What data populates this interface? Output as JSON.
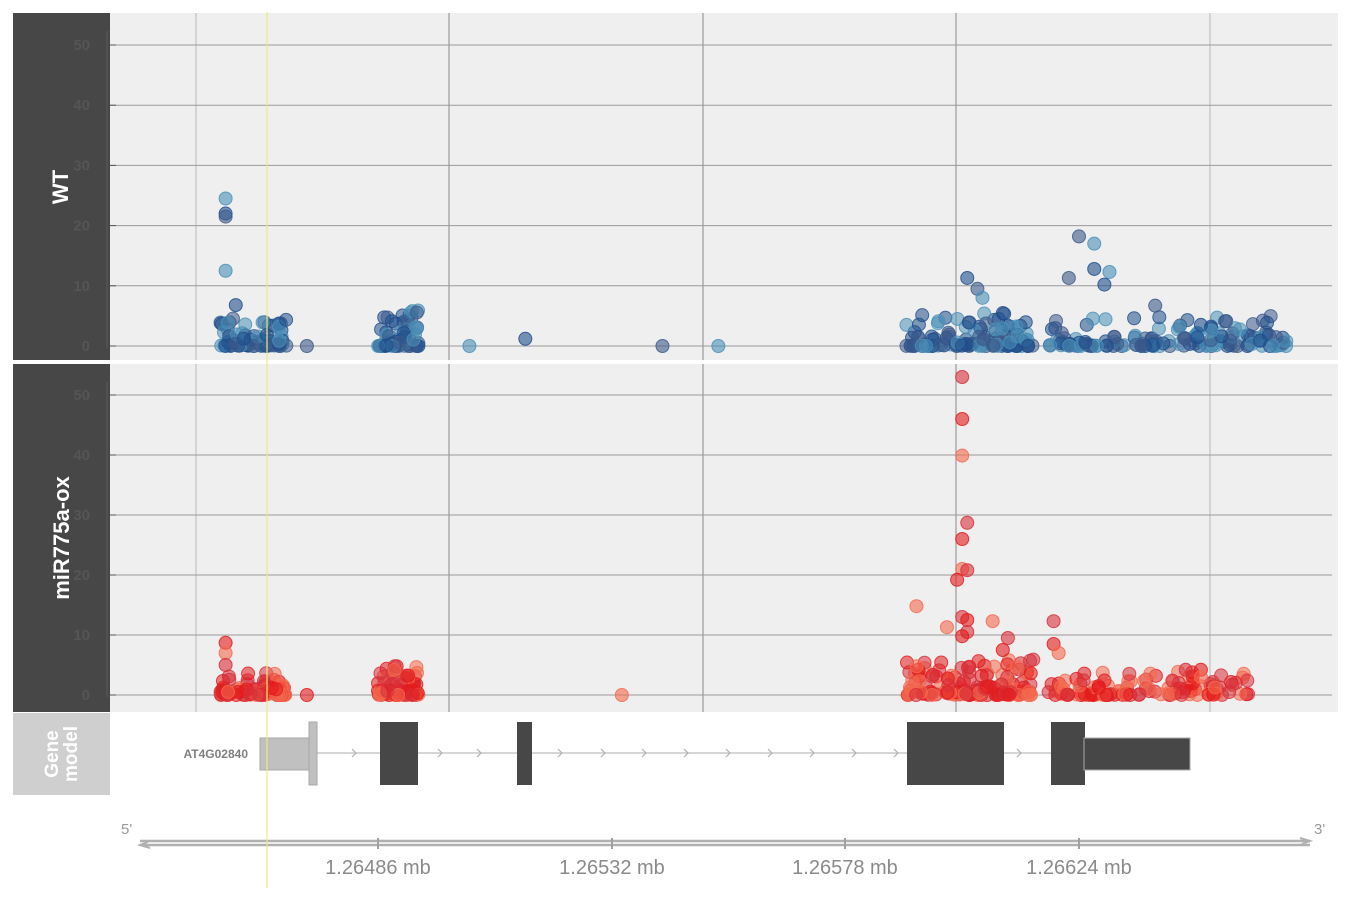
{
  "tracks": {
    "wt_label": "WT",
    "ox_label": "miR775a-ox",
    "gene_label": "Gene model"
  },
  "gene": {
    "name": "AT4G02840"
  },
  "axis": {
    "five_prime": "5'",
    "three_prime": "3'",
    "ticks": [
      "1.26486 mb",
      "1.26532 mb",
      "1.26578 mb",
      "1.26624 mb"
    ]
  },
  "chart_data": [
    {
      "type": "scatter",
      "panel": "WT",
      "ylim": [
        0,
        55
      ],
      "yticks": [
        0,
        10,
        20,
        30,
        40,
        50
      ],
      "colors": [
        "#4a90b8",
        "#1f4e8c",
        "#3d5a8a"
      ],
      "clusters": [
        {
          "x": [
            1.26455,
            1.26468
          ],
          "max": 5,
          "n": 80
        },
        {
          "x": [
            1.26486,
            1.26494
          ],
          "max": 6,
          "n": 70
        },
        {
          "x": [
            1.2659,
            1.26615
          ],
          "max": 6,
          "n": 120
        },
        {
          "x": [
            1.26618,
            1.26665
          ],
          "max": 5,
          "n": 140
        }
      ],
      "points": [
        [
          1.26456,
          24.5
        ],
        [
          1.26456,
          22
        ],
        [
          1.26456,
          21.5
        ],
        [
          1.26456,
          12.5
        ],
        [
          1.26458,
          6.8
        ],
        [
          1.26472,
          0
        ],
        [
          1.26504,
          0
        ],
        [
          1.26515,
          1.2
        ],
        [
          1.26542,
          0
        ],
        [
          1.26553,
          0
        ],
        [
          1.26602,
          11.3
        ],
        [
          1.26604,
          9.5
        ],
        [
          1.26605,
          8
        ],
        [
          1.26614,
          0
        ],
        [
          1.26624,
          18.2
        ],
        [
          1.26627,
          17
        ],
        [
          1.26627,
          12.8
        ],
        [
          1.26622,
          11.3
        ],
        [
          1.2663,
          12.3
        ],
        [
          1.26629,
          10.2
        ],
        [
          1.26639,
          6.7
        ],
        [
          1.2665,
          2.5
        ],
        [
          1.26648,
          3.5
        ]
      ]
    },
    {
      "type": "scatter",
      "panel": "miR775a-ox",
      "ylim": [
        0,
        55
      ],
      "yticks": [
        0,
        10,
        20,
        30,
        40,
        50
      ],
      "colors": [
        "#e31a1c",
        "#f4694f",
        "#d7303a"
      ],
      "clusters": [
        {
          "x": [
            1.26455,
            1.26468
          ],
          "max": 4,
          "n": 80
        },
        {
          "x": [
            1.26486,
            1.26494
          ],
          "max": 5,
          "n": 70
        },
        {
          "x": [
            1.2659,
            1.26615
          ],
          "max": 6,
          "n": 140
        },
        {
          "x": [
            1.26618,
            1.26658
          ],
          "max": 4,
          "n": 120
        }
      ],
      "points": [
        [
          1.26456,
          8.7
        ],
        [
          1.26456,
          7
        ],
        [
          1.26456,
          5
        ],
        [
          1.26472,
          0
        ],
        [
          1.26534,
          0
        ],
        [
          1.26601,
          53
        ],
        [
          1.26601,
          46
        ],
        [
          1.26601,
          39.9
        ],
        [
          1.26602,
          28.7
        ],
        [
          1.26601,
          26
        ],
        [
          1.26601,
          21
        ],
        [
          1.26602,
          20.8
        ],
        [
          1.266,
          19.2
        ],
        [
          1.26592,
          14.8
        ],
        [
          1.26601,
          13
        ],
        [
          1.26602,
          12.5
        ],
        [
          1.26598,
          11.3
        ],
        [
          1.26602,
          10.5
        ],
        [
          1.26601,
          9.8
        ],
        [
          1.26607,
          12.3
        ],
        [
          1.2661,
          9.5
        ],
        [
          1.26609,
          7.5
        ],
        [
          1.26614,
          0
        ],
        [
          1.26619,
          12.3
        ],
        [
          1.26619,
          8.5
        ],
        [
          1.2662,
          7
        ],
        [
          1.26645,
          4.2
        ],
        [
          1.26648,
          4.2
        ],
        [
          1.26648,
          3
        ]
      ]
    }
  ]
}
